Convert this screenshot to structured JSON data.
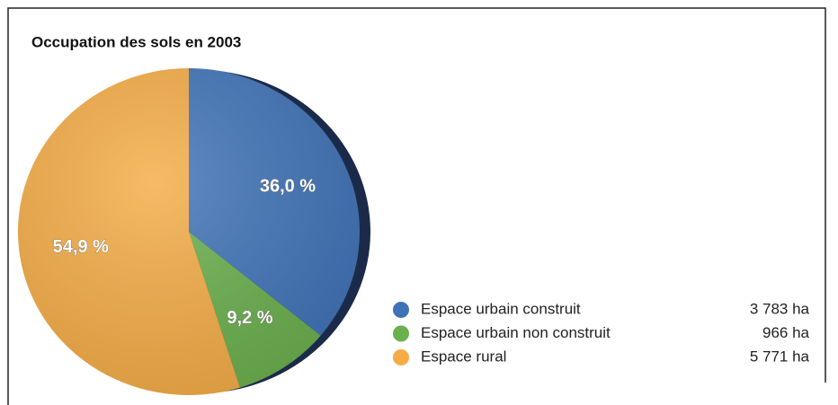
{
  "chart_data": {
    "type": "pie",
    "title": "Occupation des sols en  2003",
    "categories": [
      "Espace urbain construit",
      "Espace urbain non construit",
      "Espace rural"
    ],
    "values": [
      36.0,
      9.2,
      54.9
    ],
    "value_labels": [
      "36,0 %",
      "9,2 %",
      "54,9 %"
    ],
    "legend_values": [
      "3 783 ha",
      "966 ha",
      "5 771 ha"
    ],
    "colors": [
      "#3f73b8",
      "#6ab04c",
      "#f5ac45"
    ]
  }
}
